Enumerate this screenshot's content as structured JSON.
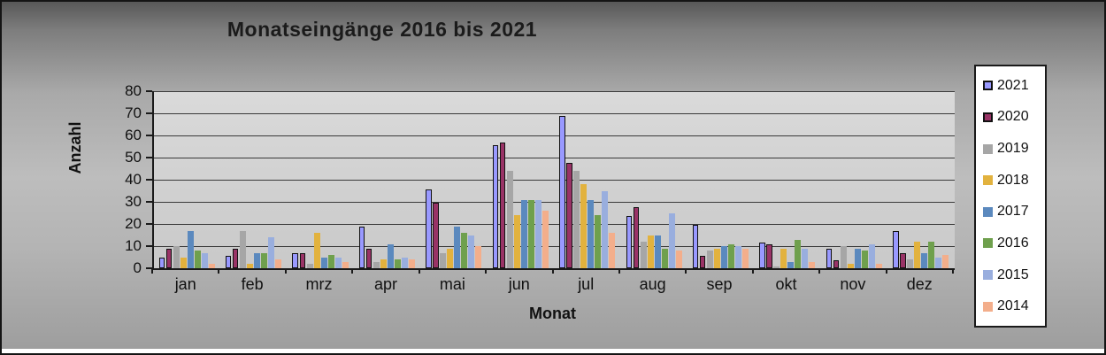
{
  "chart_data": {
    "type": "bar",
    "title": "Monatseingänge 2016 bis 2021",
    "xlabel": "Monat",
    "ylabel": "Anzahl",
    "ylim": [
      0,
      80
    ],
    "ytick_step": 10,
    "yticks": [
      "0",
      "10",
      "20",
      "30",
      "40",
      "50",
      "60",
      "70",
      "80"
    ],
    "grid": true,
    "legend_position": "right",
    "plot_bg": "#d4d4d4",
    "categories": [
      "jan",
      "feb",
      "mrz",
      "apr",
      "mai",
      "jun",
      "jul",
      "aug",
      "sep",
      "okt",
      "nov",
      "dez"
    ],
    "series": [
      {
        "name": "2021",
        "color": "#9999FF",
        "border": "#111111",
        "values": [
          4,
          5,
          6,
          18,
          35,
          55,
          68,
          23,
          19,
          11,
          8,
          16
        ]
      },
      {
        "name": "2020",
        "color": "#993366",
        "border": "#111111",
        "values": [
          8,
          8,
          6,
          8,
          29,
          56,
          47,
          27,
          5,
          10,
          3,
          6
        ]
      },
      {
        "name": "2019",
        "color": "#A6A6A6",
        "values": [
          10,
          17,
          2,
          3,
          7,
          44,
          44,
          12,
          8,
          1,
          10,
          4
        ]
      },
      {
        "name": "2018",
        "color": "#E2B23E",
        "values": [
          5,
          2,
          16,
          4,
          9,
          24,
          38,
          15,
          9,
          9,
          2,
          12
        ]
      },
      {
        "name": "2017",
        "color": "#5B89BE",
        "values": [
          17,
          7,
          5,
          11,
          19,
          31,
          31,
          15,
          10,
          3,
          9,
          7
        ]
      },
      {
        "name": "2016",
        "color": "#6FA04D",
        "values": [
          8,
          7,
          6,
          4,
          16,
          31,
          24,
          9,
          11,
          13,
          8,
          12
        ]
      },
      {
        "name": "2015",
        "color": "#99AEDE",
        "values": [
          7,
          14,
          5,
          5,
          15,
          31,
          35,
          25,
          10,
          9,
          11,
          5
        ]
      },
      {
        "name": "2014",
        "color": "#F3AE8B",
        "values": [
          2,
          4,
          3,
          4,
          10,
          26,
          16,
          8,
          9,
          3,
          2,
          6
        ]
      }
    ]
  }
}
